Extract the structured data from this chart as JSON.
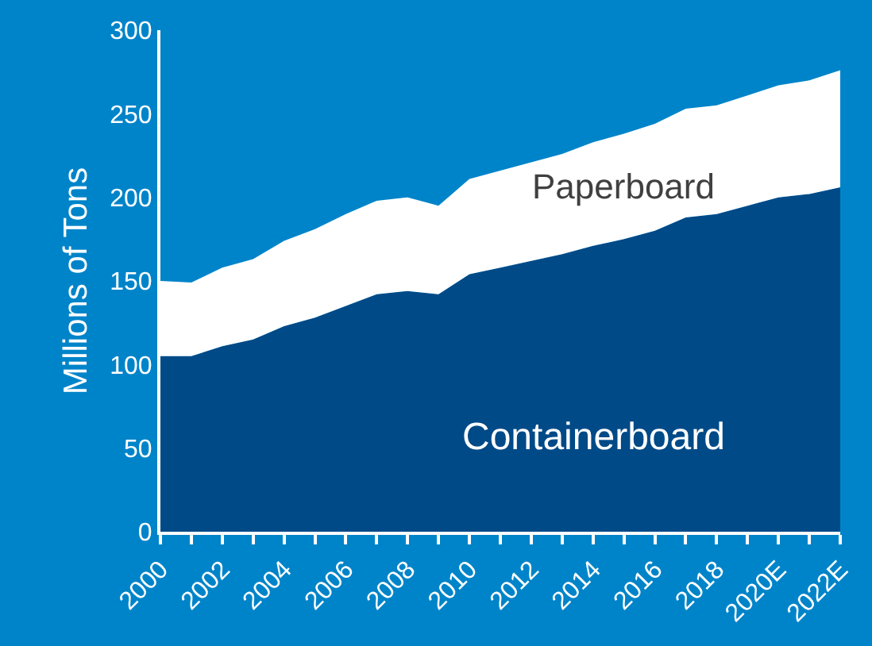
{
  "chart_data": {
    "type": "area",
    "stacked": true,
    "ylabel": "Millions of Tons",
    "categories": [
      "2000",
      null,
      "2002",
      null,
      "2004",
      null,
      "2006",
      null,
      "2008",
      null,
      "2010",
      null,
      "2012",
      null,
      "2014",
      null,
      "2016",
      null,
      "2018",
      null,
      "2020E",
      null,
      "2022E"
    ],
    "series": [
      {
        "name": "Containerboard",
        "color": "#004a87",
        "values": [
          105,
          105,
          111,
          115,
          123,
          128,
          135,
          142,
          144,
          142,
          154,
          158,
          162,
          166,
          171,
          175,
          180,
          188,
          190,
          195,
          200,
          202,
          206
        ]
      },
      {
        "name": "Paperboard",
        "color": "#ffffff",
        "values": [
          45,
          44,
          47,
          48,
          51,
          53,
          55,
          56,
          56,
          53,
          57,
          58,
          59,
          60,
          62,
          63,
          64,
          65,
          65,
          66,
          67,
          68,
          70
        ]
      }
    ],
    "ylim": [
      0,
      300
    ],
    "yticks": [
      0,
      50,
      100,
      150,
      200,
      250,
      300
    ],
    "grid": false,
    "legend": false
  }
}
